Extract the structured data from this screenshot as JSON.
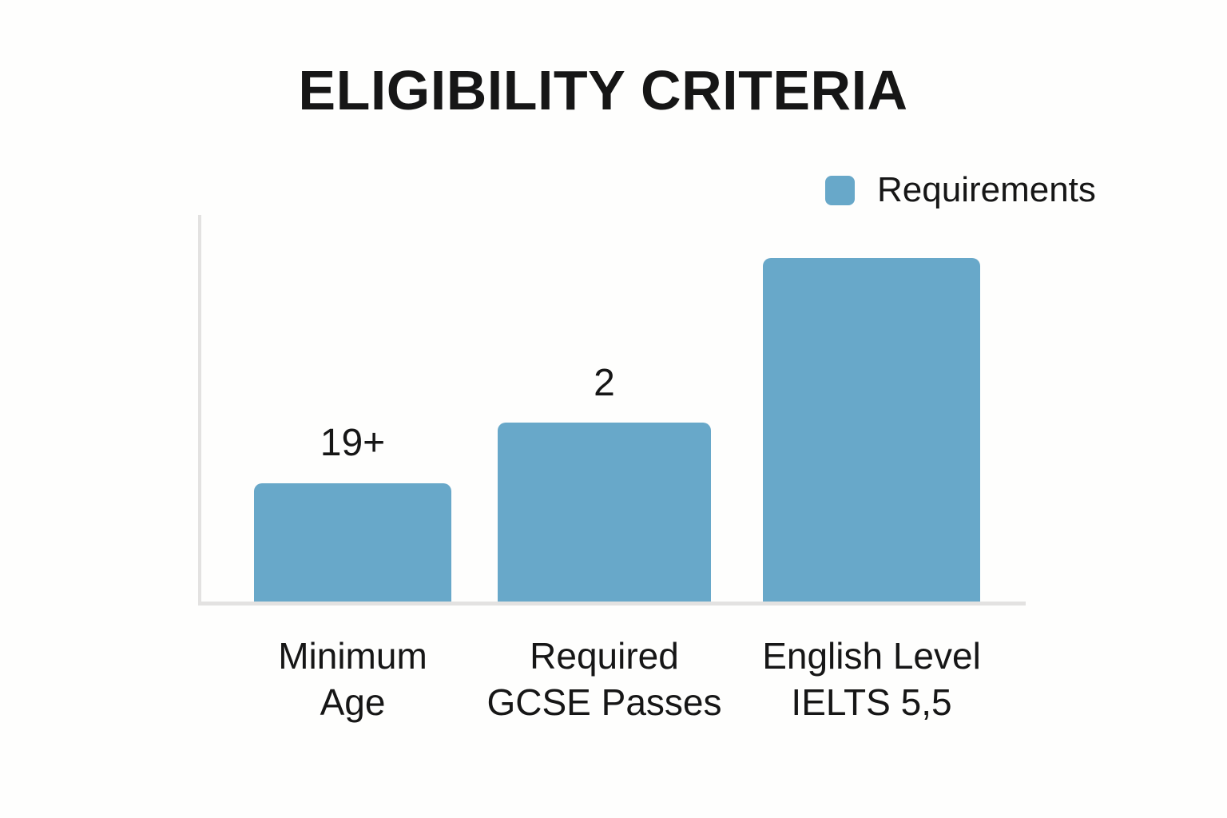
{
  "chart_data": {
    "type": "bar",
    "title": "ELIGIBILITY CRITERIA",
    "categories": [
      "Minimum Age",
      "Required GCSE Passes",
      "English Level IELTS 5,5"
    ],
    "category_lines": [
      [
        "Minimum",
        "Age"
      ],
      [
        "Required",
        "GCSE Passes"
      ],
      [
        "English Level",
        "IELTS 5,5"
      ]
    ],
    "series": [
      {
        "name": "Requirements",
        "values_displayed": [
          "19+",
          "2",
          ""
        ],
        "values_implied": [
          19,
          2,
          5.5
        ]
      }
    ],
    "bar_relative_heights": [
      0.34,
      0.52,
      1.0
    ],
    "legend": {
      "position": "top-right",
      "entries": [
        {
          "label": "Requirements",
          "color": "#68A8C9"
        }
      ]
    },
    "axes": {
      "y_axis_line_visible": true,
      "x_axis_line_visible": true,
      "tick_labels": false,
      "gridlines": false
    },
    "colors": {
      "bar": "#68A8C9",
      "axis_line": "#E3E2E1",
      "text": "#161616",
      "background": "#FEFEFD"
    }
  }
}
